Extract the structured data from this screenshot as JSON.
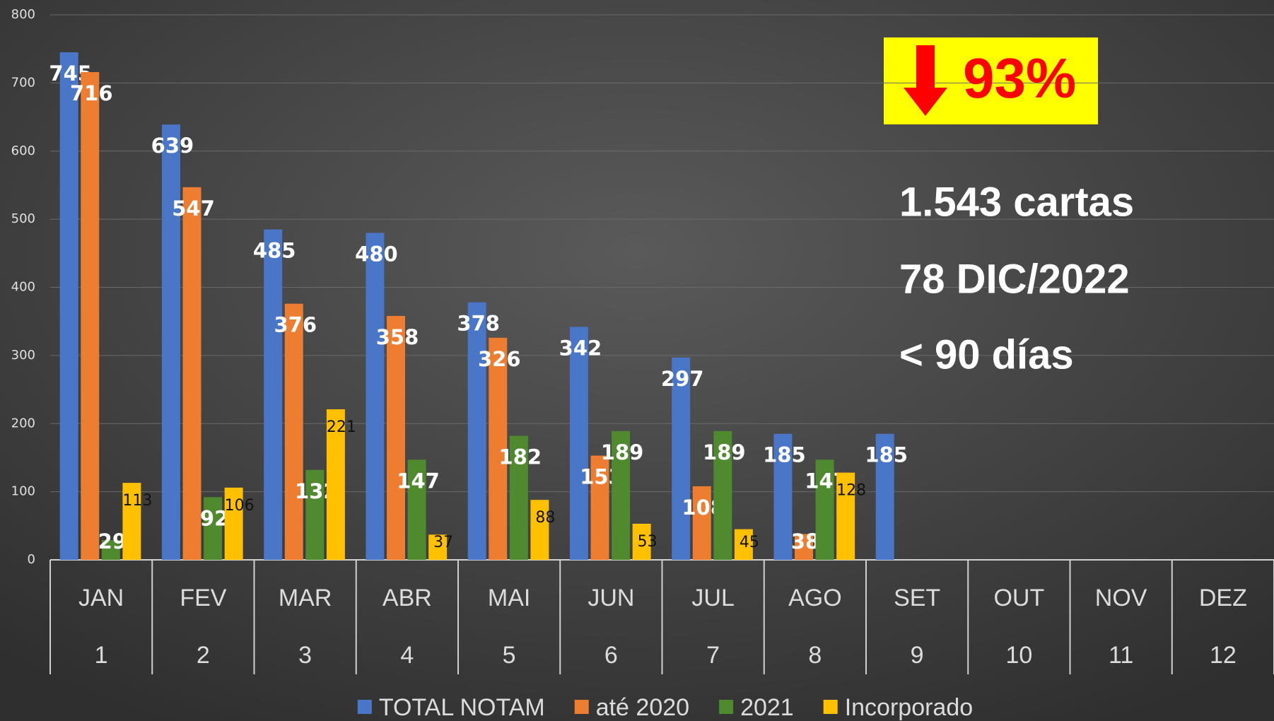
{
  "chart_data": {
    "type": "bar",
    "categories": [
      "JAN",
      "FEV",
      "MAR",
      "ABR",
      "MAI",
      "JUN",
      "JUL",
      "AGO",
      "SET",
      "OUT",
      "NOV",
      "DEZ"
    ],
    "subcategories": [
      1,
      2,
      3,
      4,
      5,
      6,
      7,
      8,
      9,
      10,
      11,
      12
    ],
    "series": [
      {
        "name": "TOTAL NOTAM",
        "color": "#4a76c8",
        "values": [
          745,
          639,
          485,
          480,
          378,
          342,
          297,
          185,
          185,
          null,
          null,
          null
        ]
      },
      {
        "name": "até 2020",
        "color": "#ed7d31",
        "values": [
          716,
          547,
          376,
          358,
          326,
          153,
          108,
          38,
          null,
          null,
          null,
          null
        ]
      },
      {
        "name": "2021",
        "color": "#4f8a2f",
        "values": [
          29,
          92,
          132,
          147,
          182,
          189,
          189,
          147,
          null,
          null,
          null,
          null
        ]
      },
      {
        "name": "Incorporado",
        "color": "#ffc000",
        "values": [
          113,
          106,
          221,
          37,
          88,
          53,
          45,
          128,
          null,
          null,
          null,
          null
        ]
      }
    ],
    "ylim": [
      0,
      800
    ],
    "yticks": [
      0,
      100,
      200,
      300,
      400,
      500,
      600,
      700,
      800
    ],
    "grid": true,
    "annotations": [
      "93%",
      "1.543 cartas",
      "78 DIC/2022",
      "< 90 días"
    ]
  }
}
